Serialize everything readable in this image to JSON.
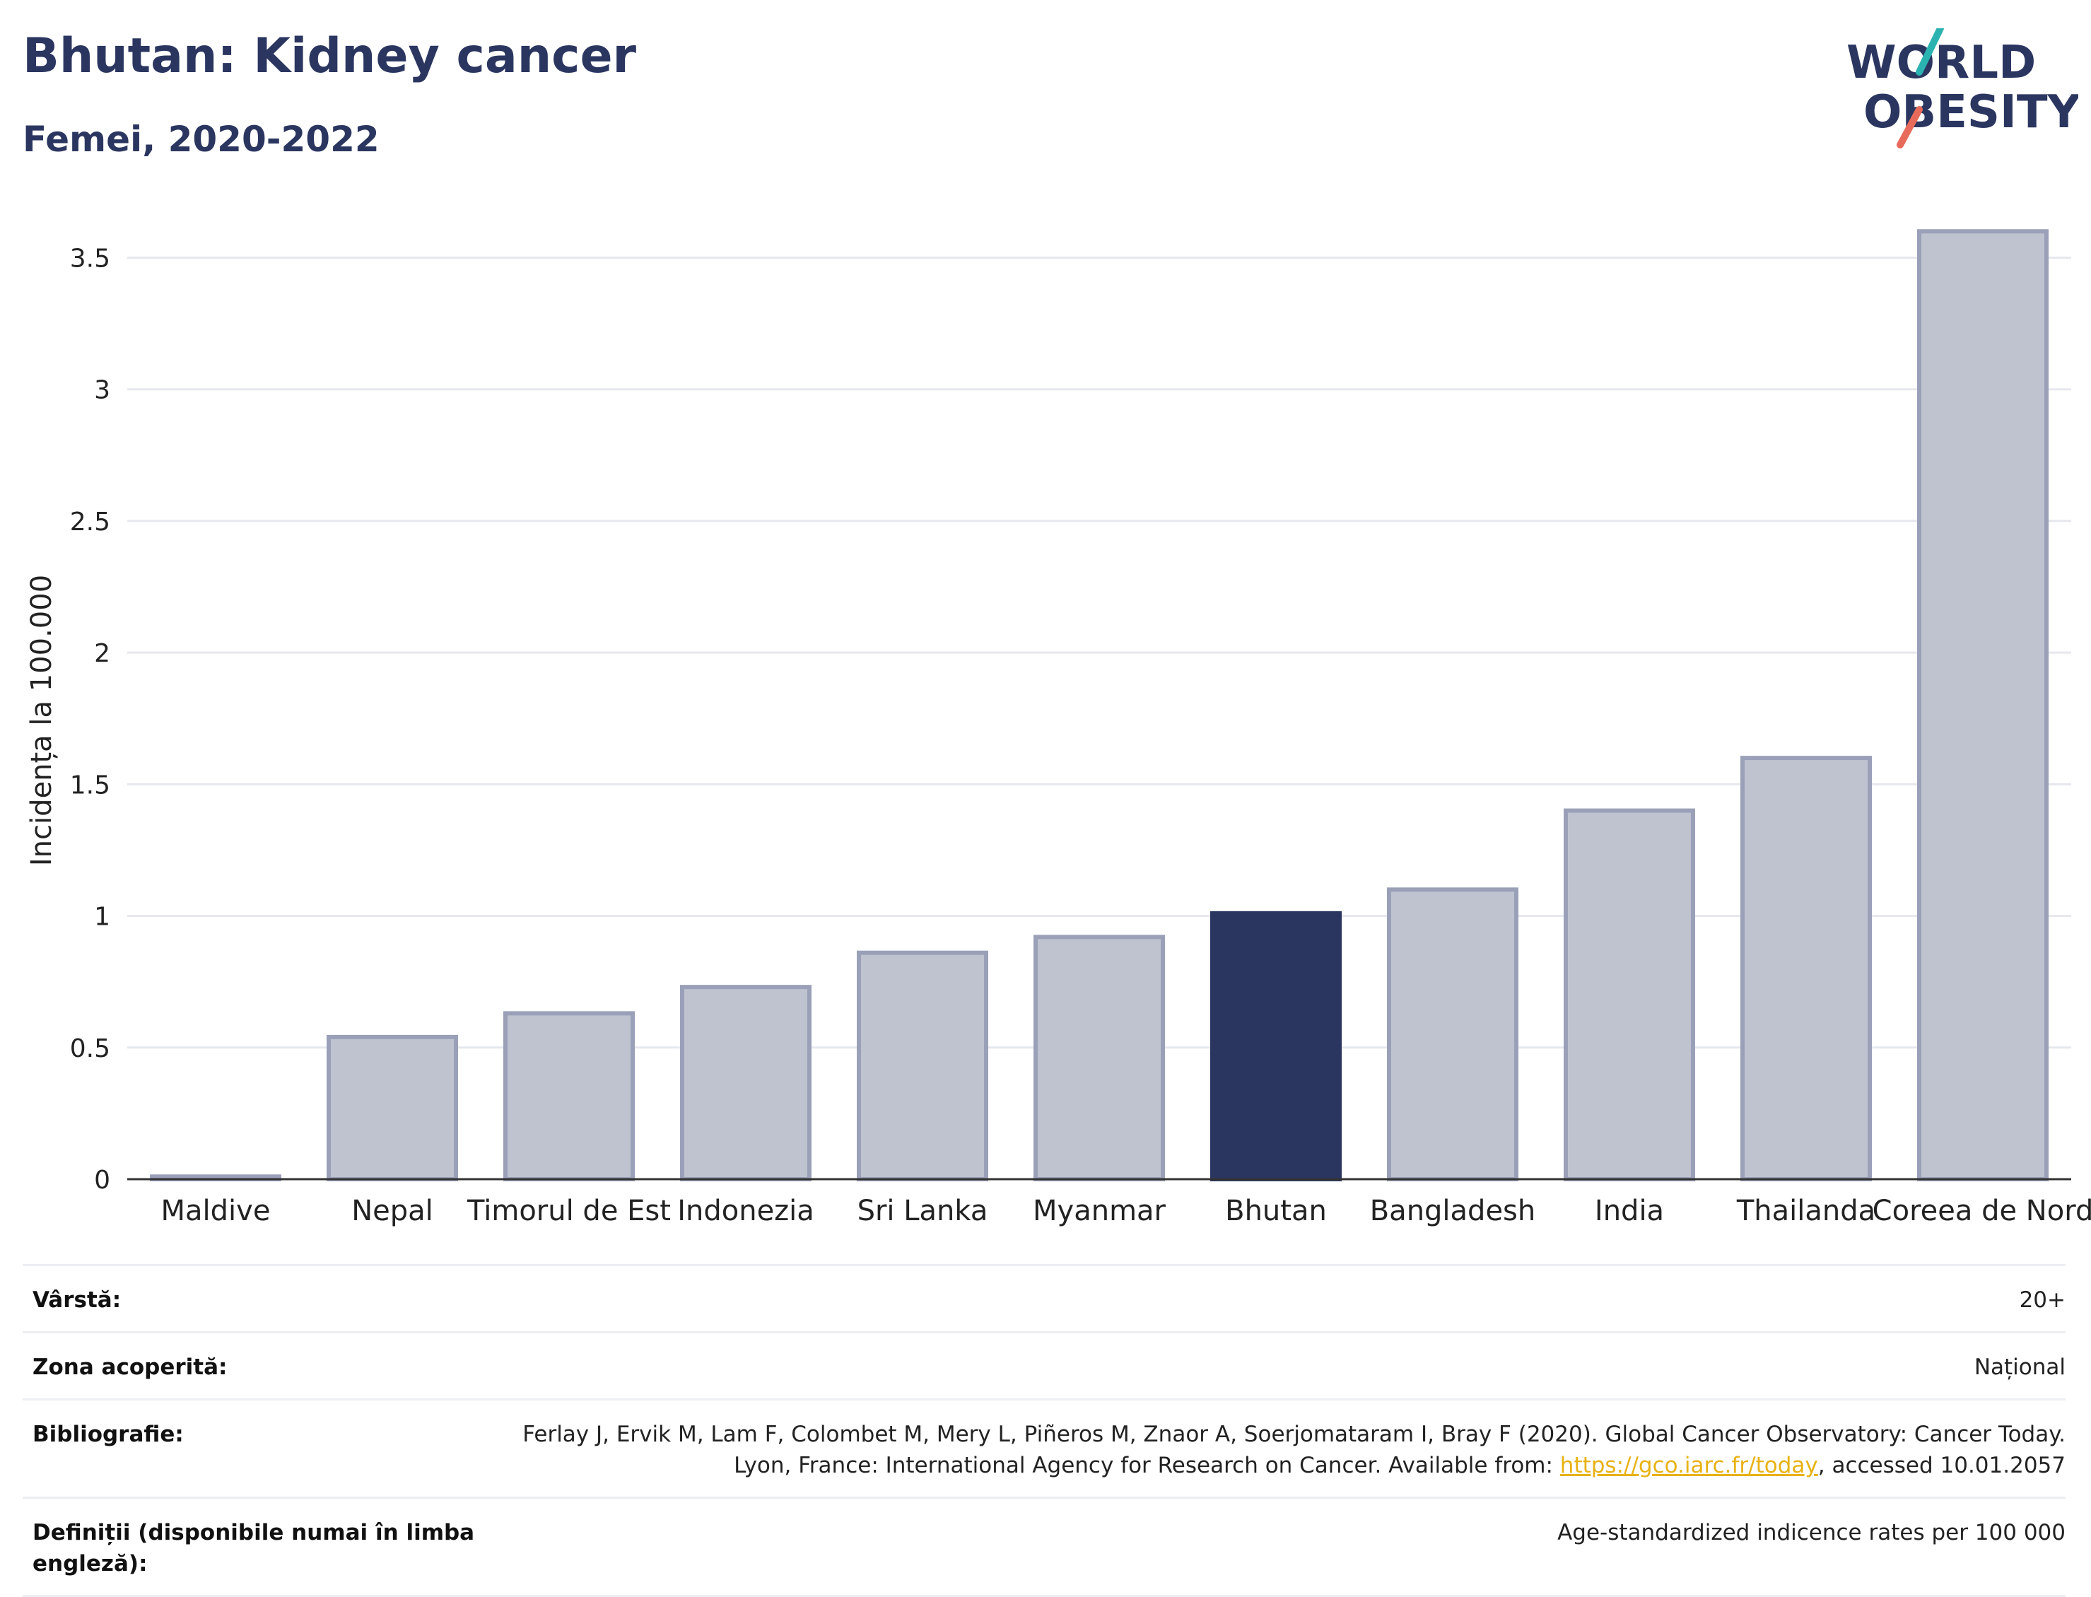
{
  "header": {
    "title": "Bhutan: Kidney cancer",
    "subtitle": "Femei, 2020-2022"
  },
  "logo": {
    "line1": "WORLD",
    "line2": "OBESITY",
    "accent_teal": "#2bb3b1",
    "accent_coral": "#e86a5a",
    "text_color": "#2b3660"
  },
  "chart_data": {
    "type": "bar",
    "categories": [
      "Maldive",
      "Nepal",
      "Timorul de Est",
      "Indonezia",
      "Sri Lanka",
      "Myanmar",
      "Bhutan",
      "Bangladesh",
      "India",
      "Thailanda",
      "Coreea de Nord"
    ],
    "values": [
      0.01,
      0.54,
      0.63,
      0.73,
      0.86,
      0.92,
      1.01,
      1.1,
      1.4,
      1.6,
      3.6
    ],
    "highlight": "Bhutan",
    "ylabel": "Incidența la 100.000",
    "xlabel": "",
    "ylim": [
      0,
      3.7
    ],
    "yticks": [
      0,
      0.5,
      1,
      1.5,
      2,
      2.5,
      3,
      3.5
    ],
    "ytick_labels": [
      "0",
      "0.5",
      "1",
      "1.5",
      "2",
      "2.5",
      "3",
      "3.5"
    ],
    "grid": true,
    "colors": {
      "bar": "#bfc3d0",
      "bar_border": "#9aa0b8",
      "highlight": "#2b3660",
      "grid": "#e6e8ee",
      "axis": "#333333"
    }
  },
  "info_table": [
    {
      "key": "Vârstă:",
      "value": "20+"
    },
    {
      "key": "Zona acoperită:",
      "value": "Național"
    },
    {
      "key": "Bibliografie:",
      "value_before": "Ferlay J, Ervik M, Lam F, Colombet M, Mery L, Piñeros M, Znaor A, Soerjomataram I, Bray F (2020). Global Cancer Observatory: Cancer Today. Lyon, France: International Agency for Research on Cancer. Available from: ",
      "link": "https://gco.iarc.fr/today",
      "value_after": ", accessed 10.01.2057"
    },
    {
      "key": "Definiții (disponibile numai în limba engleză):",
      "value": "Age-standardized indicence rates per 100 000"
    }
  ]
}
